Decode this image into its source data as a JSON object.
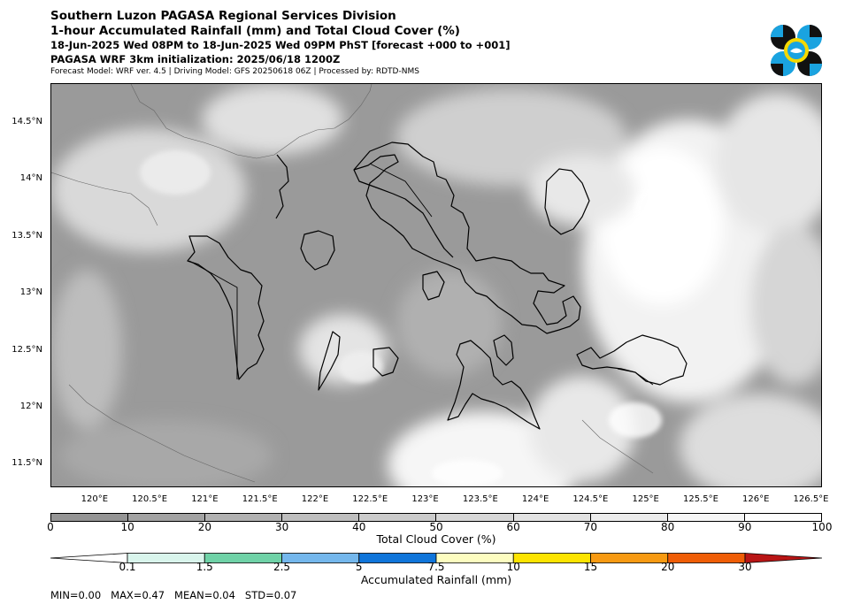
{
  "header": {
    "title1": "Southern Luzon PAGASA Regional Services Division",
    "title2": "1-hour Accumulated Rainfall (mm) and Total Cloud Cover (%)",
    "title3": "18-Jun-2025 Wed 08PM to 18-Jun-2025 Wed 09PM PhST [forecast +000 to +001]",
    "title4": "PAGASA WRF 3km initialization: 2025/06/18 1200Z",
    "title5": "Forecast Model: WRF ver. 4.5 | Driving Model: GFS 20250618 06Z | Processed by: RDTD-NMS"
  },
  "logo": {
    "icon": "pagasa-logo-icon",
    "colors": [
      "#111111",
      "#1aa3e0",
      "#f5d800"
    ]
  },
  "map": {
    "lat_labels": [
      "14.5°N",
      "14°N",
      "13.5°N",
      "13°N",
      "12.5°N",
      "12°N",
      "11.5°N"
    ],
    "lat_values": [
      14.5,
      14.0,
      13.5,
      13.0,
      12.5,
      12.0,
      11.5
    ],
    "lon_labels": [
      "120°E",
      "120.5°E",
      "121°E",
      "121.5°E",
      "122°E",
      "122.5°E",
      "123°E",
      "123.5°E",
      "124°E",
      "124.5°E",
      "125°E",
      "125.5°E",
      "126°E",
      "126.5°E"
    ],
    "lon_values": [
      120.0,
      120.5,
      121.0,
      121.5,
      122.0,
      122.5,
      123.0,
      123.5,
      124.0,
      124.5,
      125.0,
      125.5,
      126.0,
      126.5
    ],
    "lon_range": [
      119.6,
      126.6
    ],
    "lat_range": [
      11.3,
      14.85
    ]
  },
  "cloud_legend": {
    "title": "Total Cloud Cover (%)",
    "ticks": [
      "0",
      "10",
      "20",
      "30",
      "40",
      "50",
      "60",
      "70",
      "80",
      "90",
      "100"
    ],
    "colors": [
      "#959595",
      "#a3a3a3",
      "#b1b1b1",
      "#bebebe",
      "#cbcbcb",
      "#d7d7d7",
      "#e2e2e2",
      "#ececec",
      "#f5f5f5",
      "#fdfdfd"
    ]
  },
  "rain_legend": {
    "title": "Accumulated Rainfall (mm)",
    "ticks": [
      "0.1",
      "1.5",
      "2.5",
      "5",
      "7.5",
      "10",
      "15",
      "20",
      "30"
    ],
    "colors": [
      "#ffffff",
      "#d9f5ec",
      "#6fd2a7",
      "#74b7ec",
      "#1075da",
      "#fdfdc0",
      "#fde400",
      "#f79a12",
      "#ef5d06",
      "#b91515"
    ]
  },
  "stats": {
    "min": "MIN=0.00",
    "max": "MAX=0.47",
    "mean": "MEAN=0.04",
    "std": "STD=0.07"
  }
}
